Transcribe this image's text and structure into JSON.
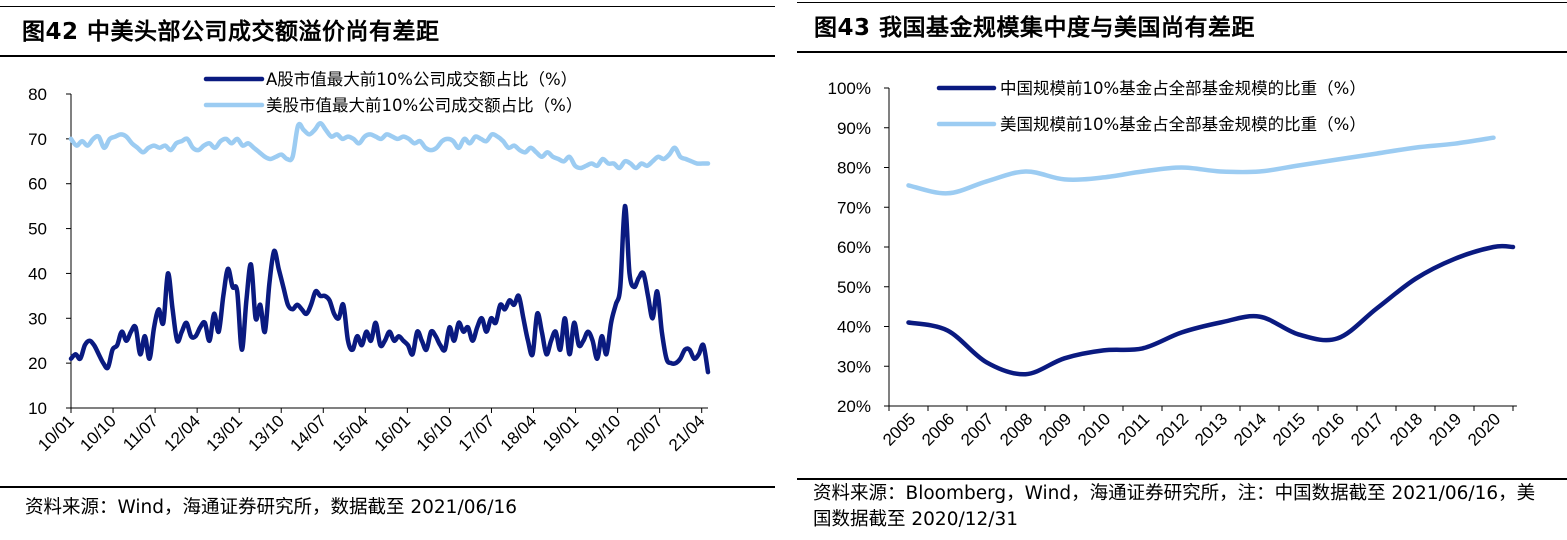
{
  "charts": [
    {
      "title": "图42 中美头部公司成交额溢价尚有差距",
      "source": "资料来源：Wind，海通证券研究所，数据截至 2021/06/16",
      "chart_data": {
        "type": "line",
        "ylim": [
          10,
          80
        ],
        "yticks": [
          "80",
          "70",
          "60",
          "50",
          "40",
          "30",
          "20",
          "10"
        ],
        "x_tick_labels": [
          "10/01",
          "10/10",
          "11/07",
          "12/04",
          "13/01",
          "13/10",
          "14/07",
          "15/04",
          "16/01",
          "16/10",
          "17/07",
          "18/04",
          "19/01",
          "19/10",
          "20/07",
          "21/04"
        ],
        "grid": false,
        "legend": "top",
        "series": [
          {
            "name": "A股市值最大前10%公司成交额占比（%）",
            "color": "#0a1a80",
            "values": [
              21,
              22,
              21,
              24,
              25,
              24,
              22,
              20,
              19,
              23,
              24,
              27,
              25,
              27,
              28,
              22,
              26,
              21,
              28,
              32,
              29,
              40,
              32,
              25,
              27,
              29,
              26,
              26,
              28,
              29,
              25,
              31,
              27,
              35,
              41,
              37,
              36,
              23,
              34,
              42,
              30,
              33,
              27,
              38,
              45,
              41,
              37,
              33,
              32,
              33,
              32,
              31,
              33,
              36,
              35,
              35,
              34,
              31,
              30,
              33,
              25,
              23,
              26,
              24,
              27,
              25,
              29,
              24,
              25,
              27,
              25,
              26,
              25,
              24,
              22,
              27,
              25,
              23,
              27,
              26,
              24,
              23,
              28,
              25,
              29,
              27,
              28,
              25,
              28,
              30,
              27,
              30,
              29,
              33,
              32,
              34,
              33,
              35,
              30,
              25,
              22,
              31,
              27,
              22,
              25,
              27,
              23,
              30,
              22,
              29,
              24,
              25,
              27,
              25,
              21,
              26,
              22,
              29,
              33,
              37,
              55,
              40,
              37,
              39,
              40,
              35,
              30,
              36,
              27,
              21,
              20,
              20,
              21,
              23,
              23,
              21,
              22,
              24,
              18
            ]
          },
          {
            "name": "美股市值最大前10%公司成交额占比（%）",
            "color": "#9cccf2",
            "values": [
              70,
              68.5,
              69.5,
              68.5,
              70,
              70.5,
              68,
              70,
              70.5,
              71,
              70.5,
              69,
              68,
              67,
              68,
              68.5,
              68,
              68.5,
              67.5,
              69,
              69.5,
              70,
              68,
              67.5,
              68.5,
              69,
              68,
              69.5,
              70,
              69,
              70,
              68.5,
              69,
              68,
              67,
              66,
              65.5,
              66,
              66.5,
              65.5,
              66,
              73,
              72,
              71,
              72,
              73.5,
              72,
              70.5,
              71,
              70,
              70.5,
              70,
              69,
              70.5,
              71,
              70.5,
              70,
              71,
              70.5,
              70,
              70.5,
              70,
              69,
              69.5,
              68,
              67.5,
              68,
              69.5,
              70,
              69.5,
              68,
              70,
              69,
              70.5,
              70,
              69.5,
              71,
              70.5,
              69.5,
              68,
              68.5,
              67.5,
              67,
              68,
              67,
              66,
              67,
              66,
              65.5,
              65,
              66,
              64,
              63.5,
              64,
              64.5,
              64,
              65.5,
              64.5,
              64.5,
              63.5,
              65,
              64.5,
              63.5,
              64.5,
              64,
              65,
              66,
              65.5,
              66.5,
              68,
              66,
              65.5,
              65,
              64.5,
              64.5,
              64.5
            ]
          }
        ]
      }
    },
    {
      "title": "图43 我国基金规模集中度与美国尚有差距",
      "source": "资料来源：Bloomberg，Wind，海通证券研究所，注：中国数据截至 2021/06/16，美国数据截至 2020/12/31",
      "chart_data": {
        "type": "line",
        "ylim": [
          20,
          100
        ],
        "yticks": [
          "100%",
          "90%",
          "80%",
          "70%",
          "60%",
          "50%",
          "40%",
          "30%",
          "20%"
        ],
        "categories": [
          "2005",
          "2006",
          "2007",
          "2008",
          "2009",
          "2010",
          "2011",
          "2012",
          "2013",
          "2014",
          "2015",
          "2016",
          "2017",
          "2018",
          "2019",
          "2020"
        ],
        "grid": false,
        "legend": "top",
        "series": [
          {
            "name": "中国规模前10%基金占全部基金规模的比重（%）",
            "color": "#0a1a80",
            "x": [
              2005,
              2006,
              2007,
              2008,
              2009,
              2010,
              2011,
              2012,
              2013,
              2014,
              2015,
              2016,
              2017,
              2018,
              2019,
              2020,
              2020.5
            ],
            "values": [
              41,
              39,
              31,
              28,
              32,
              34,
              34.5,
              38.5,
              41,
              42.5,
              38,
              37,
              44.5,
              52,
              57,
              60,
              60
            ]
          },
          {
            "name": "美国规模前10%基金占全部基金规模的比重（%）",
            "color": "#9cccf2",
            "x": [
              2005,
              2006,
              2007,
              2008,
              2009,
              2010,
              2011,
              2012,
              2013,
              2014,
              2015,
              2016,
              2017,
              2018,
              2019,
              2020
            ],
            "values": [
              75.5,
              73.5,
              76.5,
              79,
              77,
              77.5,
              79,
              80,
              79,
              79,
              80.5,
              82,
              83.5,
              85,
              86,
              87.5
            ]
          }
        ]
      }
    }
  ]
}
